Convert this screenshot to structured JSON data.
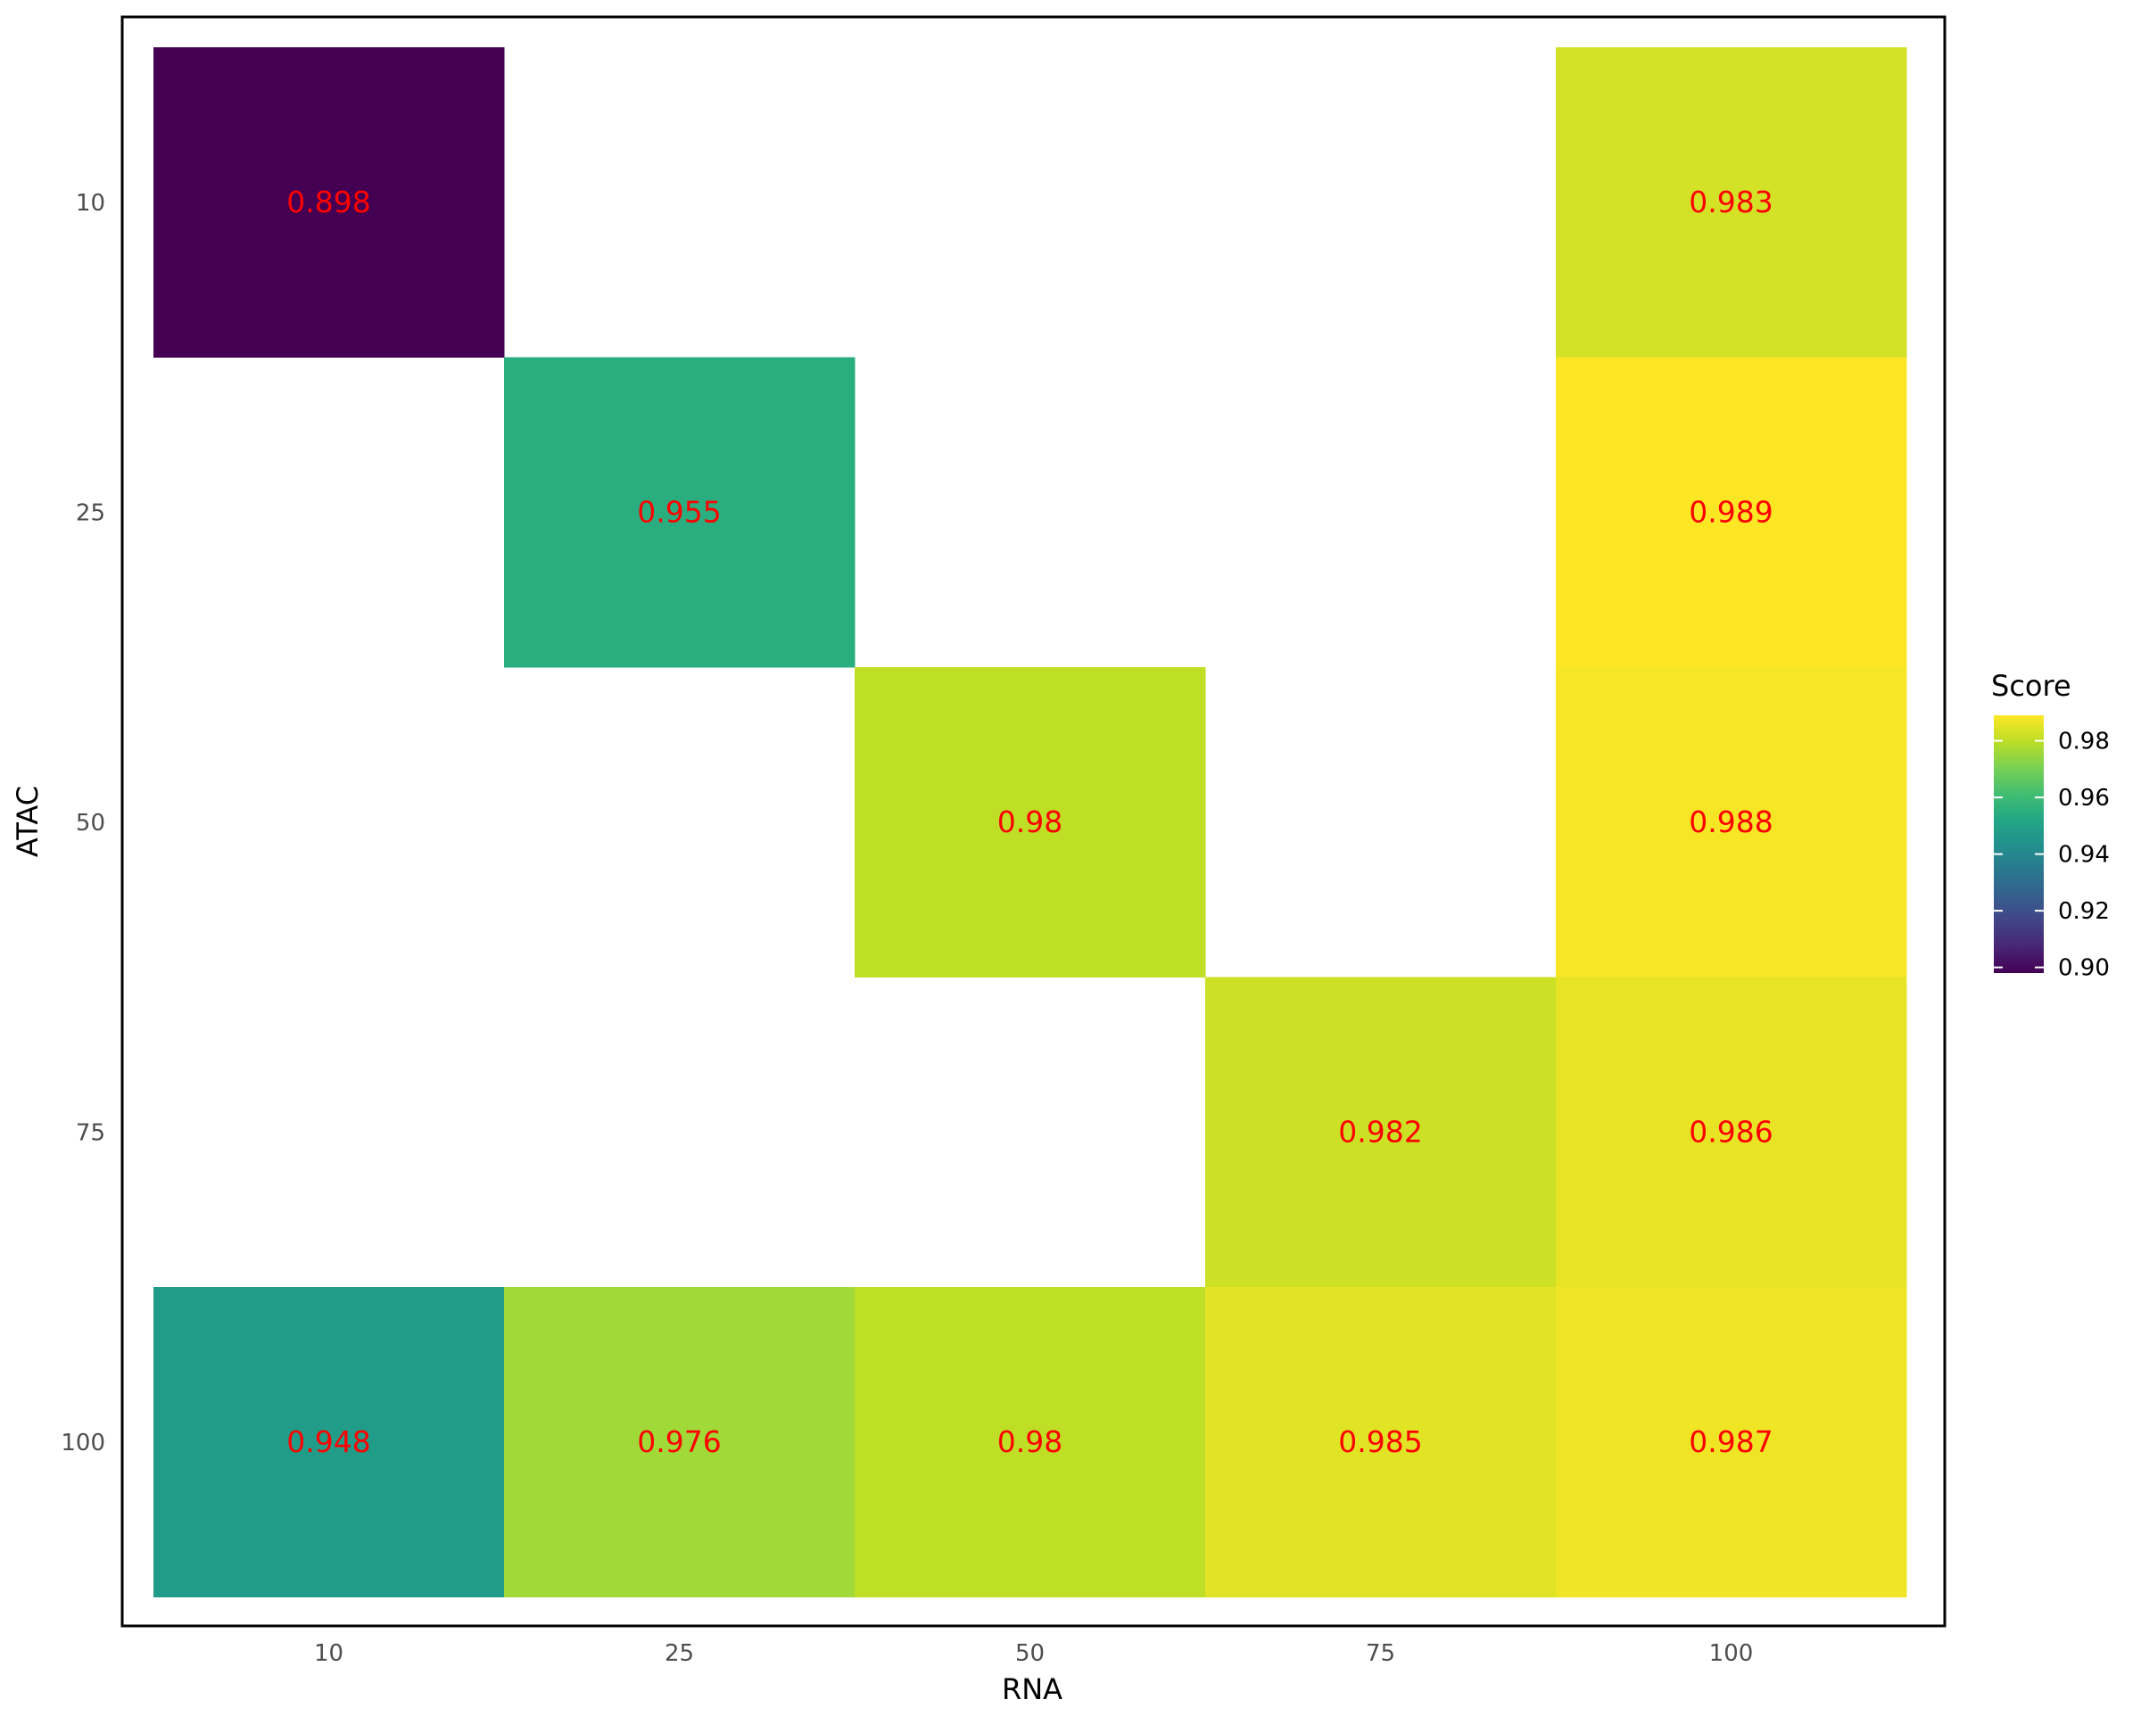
{
  "chart_data": {
    "type": "heatmap",
    "title": "",
    "xlabel": "RNA",
    "ylabel": "ATAC",
    "x_categories": [
      "10",
      "25",
      "50",
      "75",
      "100"
    ],
    "y_categories": [
      "10",
      "25",
      "50",
      "75",
      "100"
    ],
    "cells": [
      {
        "x": "10",
        "y": "10",
        "value": 0.898,
        "label": "0.898"
      },
      {
        "x": "100",
        "y": "10",
        "value": 0.983,
        "label": "0.983"
      },
      {
        "x": "25",
        "y": "25",
        "value": 0.955,
        "label": "0.955"
      },
      {
        "x": "100",
        "y": "25",
        "value": 0.989,
        "label": "0.989"
      },
      {
        "x": "50",
        "y": "50",
        "value": 0.98,
        "label": "0.98"
      },
      {
        "x": "100",
        "y": "50",
        "value": 0.988,
        "label": "0.988"
      },
      {
        "x": "75",
        "y": "75",
        "value": 0.982,
        "label": "0.982"
      },
      {
        "x": "100",
        "y": "75",
        "value": 0.986,
        "label": "0.986"
      },
      {
        "x": "10",
        "y": "100",
        "value": 0.948,
        "label": "0.948"
      },
      {
        "x": "25",
        "y": "100",
        "value": 0.976,
        "label": "0.976"
      },
      {
        "x": "50",
        "y": "100",
        "value": 0.98,
        "label": "0.98"
      },
      {
        "x": "75",
        "y": "100",
        "value": 0.985,
        "label": "0.985"
      },
      {
        "x": "100",
        "y": "100",
        "value": 0.987,
        "label": "0.987"
      }
    ],
    "colorbar": {
      "title": "Score",
      "palette": "viridis",
      "range": [
        0.898,
        0.989
      ],
      "ticks": [
        0.9,
        0.92,
        0.94,
        0.96,
        0.98
      ],
      "tick_labels": [
        "0.90",
        "0.92",
        "0.94",
        "0.96",
        "0.98"
      ]
    },
    "label_color": "#ff0000",
    "legend_position": "right",
    "grid": false
  }
}
